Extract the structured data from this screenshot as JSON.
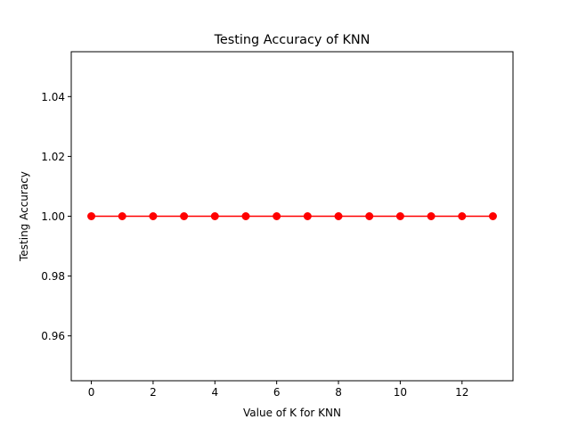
{
  "chart_data": {
    "type": "line",
    "title": "Testing Accuracy of KNN",
    "xlabel": "Value of K for KNN",
    "ylabel": "Testing Accuracy",
    "x": [
      0,
      1,
      2,
      3,
      4,
      5,
      6,
      7,
      8,
      9,
      10,
      11,
      12,
      13
    ],
    "series": [
      {
        "values": [
          1.0,
          1.0,
          1.0,
          1.0,
          1.0,
          1.0,
          1.0,
          1.0,
          1.0,
          1.0,
          1.0,
          1.0,
          1.0,
          1.0
        ],
        "color": "#ff0000",
        "marker": "circle"
      }
    ],
    "xlim": [
      -0.65,
      13.65
    ],
    "ylim": [
      0.945,
      1.055
    ],
    "x_ticks": [
      0,
      2,
      4,
      6,
      8,
      10,
      12
    ],
    "x_tick_labels": [
      "0",
      "2",
      "4",
      "6",
      "8",
      "10",
      "12"
    ],
    "y_ticks": [
      0.96,
      0.98,
      1.0,
      1.02,
      1.04
    ],
    "y_tick_labels": [
      "0.96",
      "0.98",
      "1.00",
      "1.02",
      "1.04"
    ],
    "grid": false,
    "legend": "none"
  }
}
